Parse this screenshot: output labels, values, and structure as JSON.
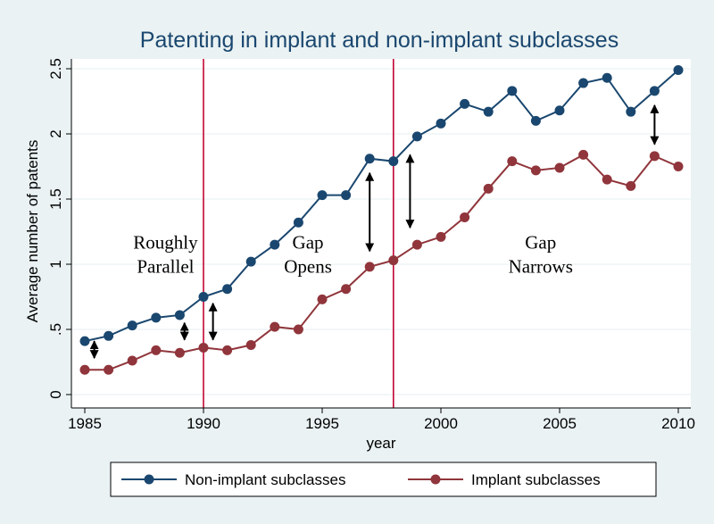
{
  "chart_data": {
    "type": "line",
    "title": "Patenting in implant and non-implant subclasses",
    "xlabel": "year",
    "ylabel": "Average number of patents",
    "xlim": [
      1985,
      2010
    ],
    "ylim": [
      0,
      2.5
    ],
    "x_ticks": [
      "1985",
      "1990",
      "1995",
      "2000",
      "2005",
      "2010"
    ],
    "y_ticks": [
      "0",
      ".5",
      "1",
      "1.5",
      "2",
      "2.5"
    ],
    "grid": "horizontal",
    "legend_position": "bottom",
    "x": [
      1985,
      1986,
      1987,
      1988,
      1989,
      1990,
      1991,
      1992,
      1993,
      1994,
      1995,
      1996,
      1997,
      1998,
      1999,
      2000,
      2001,
      2002,
      2003,
      2004,
      2005,
      2006,
      2007,
      2008,
      2009,
      2010
    ],
    "series": [
      {
        "name": "Non-implant subclasses",
        "color": "#1a476f",
        "values": [
          0.41,
          0.45,
          0.53,
          0.59,
          0.61,
          0.75,
          0.81,
          1.02,
          1.15,
          1.32,
          1.53,
          1.53,
          1.81,
          1.79,
          1.98,
          2.08,
          2.23,
          2.17,
          2.33,
          2.1,
          2.18,
          2.39,
          2.43,
          2.17,
          2.33,
          2.49
        ]
      },
      {
        "name": "Implant subclasses",
        "color": "#90353b",
        "values": [
          0.19,
          0.19,
          0.26,
          0.34,
          0.32,
          0.36,
          0.34,
          0.38,
          0.52,
          0.5,
          0.73,
          0.81,
          0.98,
          1.03,
          1.15,
          1.21,
          1.36,
          1.58,
          1.79,
          1.72,
          1.74,
          1.84,
          1.65,
          1.6,
          1.83,
          1.75
        ]
      }
    ],
    "reference_lines": [
      {
        "x": 1990,
        "color": "#c10534"
      },
      {
        "x": 1998,
        "color": "#c10534"
      }
    ],
    "annotations": [
      {
        "lines": [
          "Roughly",
          "Parallel"
        ],
        "x": 1988.4,
        "y": 1.12
      },
      {
        "lines": [
          "Gap",
          "Opens"
        ],
        "x": 1994.4,
        "y": 1.12
      },
      {
        "lines": [
          "Gap",
          "Narrows"
        ],
        "x": 2004.2,
        "y": 1.12
      }
    ],
    "gap_arrows": [
      {
        "x": 1985.4,
        "y1": 0.28,
        "y2": 0.41
      },
      {
        "x": 1989.2,
        "y1": 0.42,
        "y2": 0.55
      },
      {
        "x": 1990.4,
        "y1": 0.42,
        "y2": 0.7
      },
      {
        "x": 1997.0,
        "y1": 1.1,
        "y2": 1.7
      },
      {
        "x": 1998.7,
        "y1": 1.28,
        "y2": 1.84
      },
      {
        "x": 2009.0,
        "y1": 1.92,
        "y2": 2.22
      }
    ]
  }
}
